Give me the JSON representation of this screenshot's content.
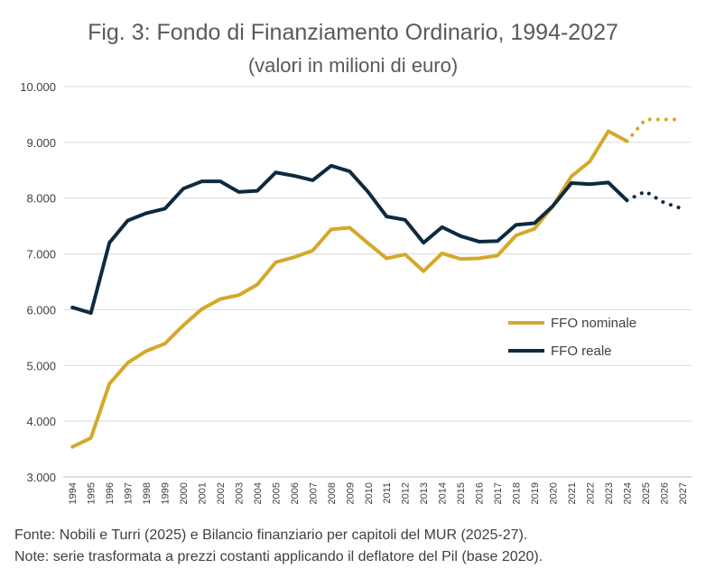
{
  "header": {
    "title": "Fig. 3: Fondo di Finanziamento Ordinario, 1994-2027",
    "subtitle": "(valori in milioni di euro)"
  },
  "footer": {
    "source": "Fonte: Nobili e Turri (2025) e Bilancio finanziario per capitoli del MUR (2025-27).",
    "note": "Note: serie trasformata a prezzi costanti applicando il deflatore del Pil (base 2020)."
  },
  "chart_data": {
    "type": "line",
    "title": "Fig. 3: Fondo di Finanziamento Ordinario, 1994-2027",
    "subtitle": "(valori in milioni di euro)",
    "x": [
      1994,
      1995,
      1996,
      1997,
      1998,
      1999,
      2000,
      2001,
      2002,
      2003,
      2004,
      2005,
      2006,
      2007,
      2008,
      2009,
      2010,
      2011,
      2012,
      2013,
      2014,
      2015,
      2016,
      2017,
      2018,
      2019,
      2020,
      2021,
      2022,
      2023,
      2024,
      2025,
      2026,
      2027
    ],
    "x_tick_labels": [
      "1994",
      "1995",
      "1996",
      "1997",
      "1998",
      "1999",
      "2000",
      "2001",
      "2002",
      "2003",
      "2004",
      "2005",
      "2006",
      "2007",
      "2008",
      "2009",
      "2010",
      "2011",
      "2012",
      "2013",
      "2014",
      "2015",
      "2016",
      "2017",
      "2018",
      "2019",
      "2020",
      "2021",
      "2022",
      "2023",
      "2024",
      "2025",
      "2026",
      "2027"
    ],
    "y_tick_labels": [
      "3.000",
      "4.000",
      "5.000",
      "6.000",
      "7.000",
      "8.000",
      "9.000",
      "10.000"
    ],
    "y_ticks": [
      3000,
      4000,
      5000,
      6000,
      7000,
      8000,
      9000,
      10000
    ],
    "ylim": [
      3000,
      10000
    ],
    "grid": true,
    "legend_position": "right-middle",
    "forecast_from": 2024,
    "series": [
      {
        "name": "FFO nominale",
        "color": "#D4A82A",
        "values": [
          3540,
          3700,
          4670,
          5050,
          5260,
          5390,
          5720,
          6010,
          6190,
          6260,
          6450,
          6850,
          6940,
          7060,
          7440,
          7470,
          7190,
          6920,
          6990,
          6690,
          7010,
          6910,
          6920,
          6970,
          7330,
          7450,
          7860,
          8390,
          8660,
          9200,
          9020,
          9410,
          9410,
          9410
        ]
      },
      {
        "name": "FFO reale",
        "color": "#0E2A3F",
        "values": [
          6040,
          5940,
          7200,
          7600,
          7730,
          7810,
          8170,
          8300,
          8300,
          8110,
          8130,
          8460,
          8400,
          8320,
          8580,
          8480,
          8110,
          7670,
          7610,
          7200,
          7480,
          7320,
          7220,
          7230,
          7520,
          7550,
          7860,
          8270,
          8250,
          8280,
          7960,
          8120,
          7920,
          7810
        ]
      }
    ]
  }
}
